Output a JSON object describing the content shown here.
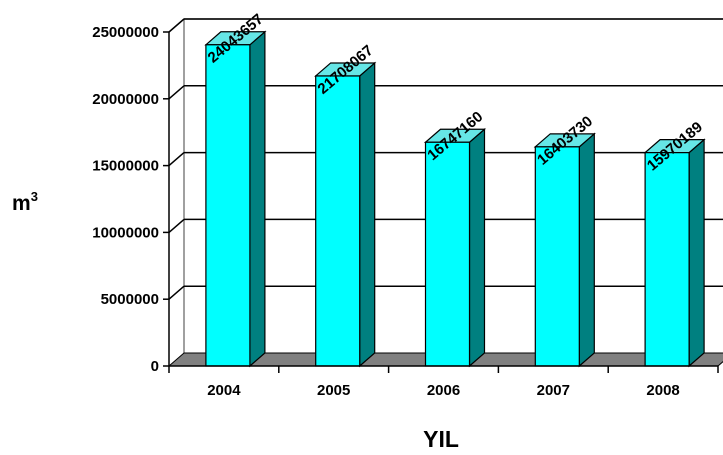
{
  "chart_data": {
    "type": "bar",
    "categories": [
      "2004",
      "2005",
      "2006",
      "2007",
      "2008"
    ],
    "values": [
      24043657,
      21708067,
      16747160,
      16403730,
      15970189
    ],
    "data_labels": [
      "24043657",
      "21708067",
      "16747160",
      "16403730",
      "15970189"
    ],
    "xlabel": "YIL",
    "ylabel_base": "m",
    "ylabel_sup": "3",
    "ylim": [
      0,
      25000000
    ],
    "yticks": [
      "0",
      "5000000",
      "10000000",
      "15000000",
      "20000000",
      "25000000"
    ],
    "grid": true,
    "three_d": true,
    "colors": {
      "bar_front": "#00ffff",
      "bar_top": "#66e6e6",
      "bar_side": "#008080",
      "floor": "#808080",
      "gridline": "#000000",
      "back_wall_border": "#808080"
    }
  }
}
